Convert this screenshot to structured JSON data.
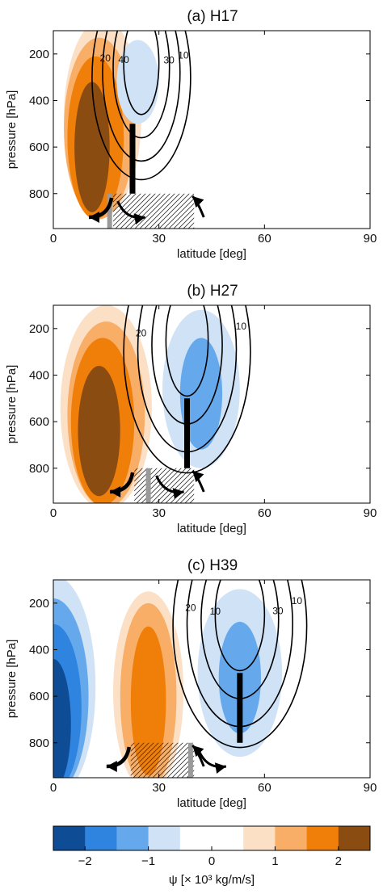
{
  "chart_data": [
    {
      "type": "contour",
      "title": "(a) H17",
      "xlabel": "latitude [deg]",
      "ylabel": "pressure [hPa]",
      "xlim": [
        0,
        90
      ],
      "ylim": [
        950,
        100
      ],
      "xticks": [
        "0",
        "30",
        "60",
        "90"
      ],
      "yticks": [
        "200",
        "400",
        "600",
        "800"
      ],
      "filled_cells": [
        {
          "lat": 11,
          "p": 600,
          "sx": 5,
          "sy": 280,
          "level": 2,
          "color": "#8B4C11"
        },
        {
          "lat": 12,
          "p": 560,
          "sx": 8,
          "sy": 350,
          "level": 1.5,
          "color": "#F07F0A"
        },
        {
          "lat": 13,
          "p": 520,
          "sx": 10,
          "sy": 390,
          "level": 1.0,
          "color": "#F8AE67"
        },
        {
          "lat": 14,
          "p": 470,
          "sx": 11,
          "sy": 420,
          "level": 0.5,
          "color": "#FCE0C6"
        },
        {
          "lat": 24,
          "p": 320,
          "sx": 6,
          "sy": 180,
          "level": -0.5,
          "color": "#CFE2F6"
        }
      ],
      "contours": [
        {
          "level": "10",
          "lat": 25,
          "p": 300,
          "sx": 14,
          "sy": 440
        },
        {
          "level": "20",
          "lat": 25,
          "p": 280,
          "sx": 11,
          "sy": 380
        },
        {
          "level": "30",
          "lat": 25,
          "p": 260,
          "sx": 8,
          "sy": 300
        },
        {
          "level": "40",
          "lat": 25,
          "p": 240,
          "sx": 5,
          "sy": 220
        }
      ],
      "contour_labels": [
        "10",
        "20",
        "30",
        "40"
      ],
      "hatch": {
        "lat0": 17,
        "lat1": 40,
        "p0": 800,
        "p1": 950
      },
      "edge_bar": {
        "lat": 22.5,
        "p0": 500,
        "p1": 800
      },
      "grey_bar": {
        "lat": 16,
        "p0": 800,
        "p1": 950
      }
    },
    {
      "type": "contour",
      "title": "(b) H27",
      "xlabel": "latitude [deg]",
      "ylabel": "pressure [hPa]",
      "xlim": [
        0,
        90
      ],
      "ylim": [
        950,
        100
      ],
      "xticks": [
        "0",
        "30",
        "60",
        "90"
      ],
      "yticks": [
        "200",
        "400",
        "600",
        "800"
      ],
      "filled_cells": [
        {
          "lat": 13,
          "p": 640,
          "sx": 6,
          "sy": 280,
          "level": 2,
          "color": "#8B4C11"
        },
        {
          "lat": 14,
          "p": 600,
          "sx": 9,
          "sy": 360,
          "level": 1.5,
          "color": "#F07F0A"
        },
        {
          "lat": 15,
          "p": 570,
          "sx": 11,
          "sy": 400,
          "level": 1.0,
          "color": "#F8AE67"
        },
        {
          "lat": 15,
          "p": 540,
          "sx": 13,
          "sy": 440,
          "level": 0.5,
          "color": "#FCE0C6"
        },
        {
          "lat": 42,
          "p": 480,
          "sx": 6,
          "sy": 240,
          "level": -1.0,
          "color": "#65A9EC"
        },
        {
          "lat": 42,
          "p": 460,
          "sx": 11,
          "sy": 340,
          "level": -0.5,
          "color": "#CFE2F6"
        }
      ],
      "contours": [
        {
          "level": "10",
          "lat": 38,
          "p": 300,
          "sx": 18,
          "sy": 520
        },
        {
          "level": "20",
          "lat": 38,
          "p": 290,
          "sx": 14,
          "sy": 440
        },
        {
          "level": "30",
          "lat": 38,
          "p": 270,
          "sx": 10,
          "sy": 340
        },
        {
          "level": "40",
          "lat": 38,
          "p": 250,
          "sx": 6,
          "sy": 240
        }
      ],
      "contour_labels": [
        "10",
        "20"
      ],
      "hatch": {
        "lat0": 23,
        "lat1": 40,
        "p0": 800,
        "p1": 950
      },
      "edge_bar": {
        "lat": 38,
        "p0": 500,
        "p1": 800
      },
      "grey_bar": {
        "lat": 27,
        "p0": 800,
        "p1": 950
      }
    },
    {
      "type": "contour",
      "title": "(c) H39",
      "xlabel": "latitude [deg]",
      "ylabel": "pressure [hPa]",
      "xlim": [
        0,
        90
      ],
      "ylim": [
        950,
        100
      ],
      "xticks": [
        "0",
        "30",
        "60",
        "90"
      ],
      "yticks": [
        "200",
        "400",
        "600",
        "800"
      ],
      "filled_cells": [
        {
          "lat": 0,
          "p": 720,
          "sx": 5,
          "sy": 280,
          "level": -2,
          "color": "#0E4C96"
        },
        {
          "lat": 0,
          "p": 650,
          "sx": 8,
          "sy": 360,
          "level": -1.5,
          "color": "#2E84DF"
        },
        {
          "lat": 0,
          "p": 600,
          "sx": 10,
          "sy": 420,
          "level": -1.0,
          "color": "#65A9EC"
        },
        {
          "lat": 0,
          "p": 560,
          "sx": 12,
          "sy": 480,
          "level": -0.5,
          "color": "#CFE2F6"
        },
        {
          "lat": 27,
          "p": 620,
          "sx": 5,
          "sy": 320,
          "level": 1.5,
          "color": "#F07F0A"
        },
        {
          "lat": 27,
          "p": 600,
          "sx": 8,
          "sy": 400,
          "level": 1.0,
          "color": "#F8AE67"
        },
        {
          "lat": 27,
          "p": 580,
          "sx": 10,
          "sy": 430,
          "level": 0.5,
          "color": "#FCE0C6"
        },
        {
          "lat": 53,
          "p": 520,
          "sx": 6,
          "sy": 240,
          "level": -1.0,
          "color": "#65A9EC"
        },
        {
          "lat": 53,
          "p": 500,
          "sx": 12,
          "sy": 360,
          "level": -0.5,
          "color": "#CFE2F6"
        }
      ],
      "contours": [
        {
          "level": "10",
          "lat": 53,
          "p": 300,
          "sx": 19,
          "sy": 520
        },
        {
          "level": "20",
          "lat": 53,
          "p": 290,
          "sx": 15,
          "sy": 440
        },
        {
          "level": "30",
          "lat": 53,
          "p": 270,
          "sx": 11,
          "sy": 340
        },
        {
          "level": "40",
          "lat": 53,
          "p": 250,
          "sx": 7,
          "sy": 240
        }
      ],
      "contour_labels": [
        "10",
        "20",
        "30",
        "10"
      ],
      "hatch": {
        "lat0": 22,
        "lat1": 40,
        "p0": 800,
        "p1": 950
      },
      "edge_bar": {
        "lat": 53,
        "p0": 500,
        "p1": 800
      },
      "grey_bar": {
        "lat": 39,
        "p0": 800,
        "p1": 950
      }
    }
  ],
  "colorbar": {
    "colors": [
      "#0E4C96",
      "#2E84DF",
      "#65A9EC",
      "#CFE2F6",
      "#FFFFFF",
      "#FFFFFF",
      "#FCE0C6",
      "#F8AE67",
      "#F07F0A",
      "#8B4C11"
    ],
    "range": [
      -2.5,
      2.5
    ],
    "ticks": [
      "−2",
      "−1",
      "0",
      "1",
      "2"
    ],
    "tick_values": [
      -2,
      -1,
      0,
      1,
      2
    ],
    "label": "ψ [× 10³ kg/m/s]"
  }
}
